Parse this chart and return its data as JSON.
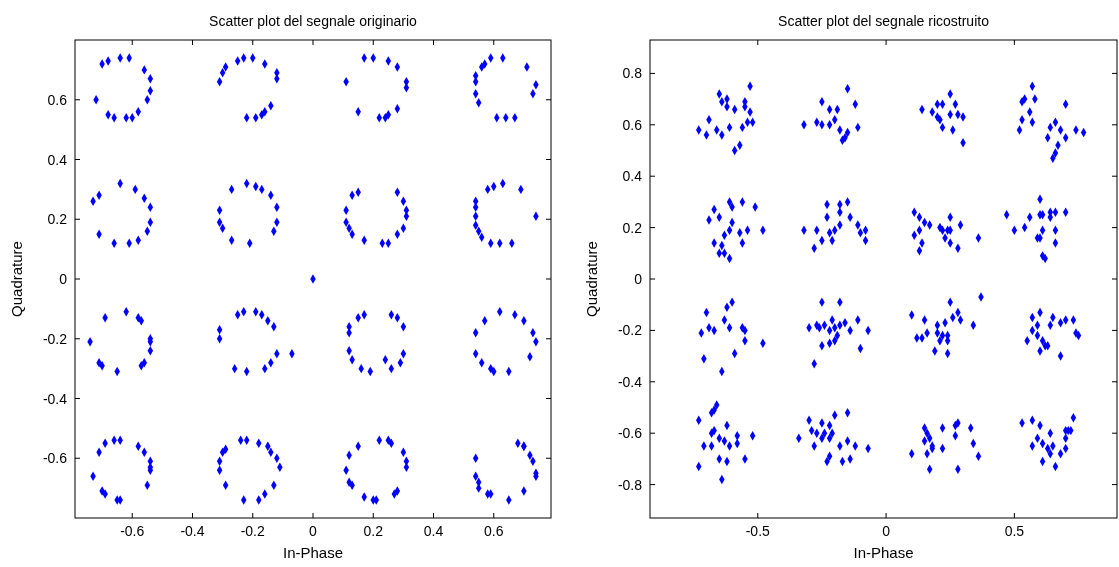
{
  "chart_data": [
    {
      "type": "scatter",
      "title": "Scatter plot del segnale originario",
      "xlabel": "In-Phase",
      "ylabel": "Quadrature",
      "xlim": [
        -0.79,
        0.79
      ],
      "ylim": [
        -0.8,
        0.8
      ],
      "xticks": [
        -0.6,
        -0.4,
        -0.2,
        0,
        0.2,
        0.4,
        0.6
      ],
      "yticks": [
        -0.6,
        -0.4,
        -0.2,
        0,
        0.2,
        0.4,
        0.6
      ],
      "marker": "diamond",
      "series": [
        {
          "color": "#0000ff",
          "x": [
            -0.72,
            -0.7,
            -0.68,
            -0.64,
            -0.61,
            -0.56,
            -0.54,
            -0.54,
            -0.55,
            -0.58,
            -0.6,
            -0.62,
            -0.66,
            -0.68,
            -0.31,
            -0.3,
            -0.29,
            -0.25,
            -0.23,
            -0.2,
            -0.16,
            -0.12,
            -0.12,
            -0.14,
            -0.16,
            -0.17,
            -0.19,
            -0.22,
            0.11,
            0.15,
            0.17,
            0.2,
            0.25,
            0.28,
            0.31,
            0.31,
            0.28,
            0.25,
            0.24,
            0.22,
            0.54,
            0.54,
            0.56,
            0.57,
            0.59,
            0.63,
            0.71,
            0.74,
            0.73,
            0.54,
            0.55,
            0.61,
            0.64,
            0.67,
            -0.73,
            -0.71,
            -0.64,
            -0.59,
            -0.56,
            -0.54,
            -0.54,
            -0.55,
            -0.58,
            -0.61,
            -0.66,
            -0.71,
            -0.31,
            -0.31,
            -0.3,
            -0.27,
            -0.27,
            -0.22,
            -0.19,
            -0.17,
            -0.14,
            -0.12,
            -0.12,
            -0.13,
            -0.21,
            0.11,
            0.11,
            0.12,
            0.13,
            0.17,
            0.13,
            0.15,
            0.28,
            0.3,
            0.31,
            0.31,
            0.3,
            0.28,
            0.25,
            0.23,
            0.54,
            0.54,
            0.54,
            0.54,
            0.55,
            0.56,
            0.59,
            0.62,
            0.66,
            0.58,
            0.6,
            0.63,
            0.69,
            0.74,
            0,
            -0.74,
            -0.69,
            -0.62,
            -0.58,
            -0.57,
            -0.54,
            -0.54,
            -0.54,
            -0.56,
            -0.57,
            -0.65,
            -0.7,
            -0.71,
            -0.31,
            -0.31,
            -0.25,
            -0.23,
            -0.19,
            -0.17,
            -0.15,
            -0.13,
            -0.12,
            -0.14,
            -0.16,
            -0.22,
            -0.26,
            -0.07,
            0.12,
            0.12,
            0.15,
            0.17,
            0.26,
            0.28,
            0.3,
            0.3,
            0.29,
            0.26,
            0.24,
            0.19,
            0.16,
            0.13,
            0.12,
            0.54,
            0.57,
            0.62,
            0.67,
            0.7,
            0.73,
            0.74,
            0.72,
            0.65,
            0.6,
            0.59,
            0.56,
            0.54,
            -0.73,
            -0.71,
            -0.69,
            -0.66,
            -0.64,
            -0.58,
            -0.56,
            -0.54,
            -0.54,
            -0.54,
            -0.55,
            -0.64,
            -0.65,
            -0.69,
            -0.7,
            -0.31,
            -0.31,
            -0.3,
            -0.29,
            -0.29,
            -0.24,
            -0.22,
            -0.18,
            -0.15,
            -0.14,
            -0.12,
            -0.11,
            -0.13,
            -0.16,
            -0.18,
            -0.23,
            0.11,
            0.12,
            0.15,
            0.22,
            0.25,
            0.26,
            0.3,
            0.31,
            0.31,
            0.28,
            0.27,
            0.21,
            0.2,
            0.17,
            0.13,
            0.12,
            0.54,
            0.54,
            0.55,
            0.55,
            0.58,
            0.59,
            0.65,
            0.7,
            0.74,
            0.74,
            0.73,
            0.72,
            0.7,
            0.7,
            0.68
          ],
          "values": [
            0.6,
            0.72,
            0.73,
            0.74,
            0.74,
            0.7,
            0.67,
            0.63,
            0.6,
            0.56,
            0.54,
            0.54,
            0.54,
            0.55,
            0.66,
            0.69,
            0.71,
            0.73,
            0.74,
            0.74,
            0.72,
            0.69,
            0.67,
            0.58,
            0.56,
            0.55,
            0.54,
            0.54,
            0.66,
            0.56,
            0.74,
            0.74,
            0.73,
            0.71,
            0.66,
            0.64,
            0.57,
            0.55,
            0.54,
            0.54,
            0.66,
            0.68,
            0.71,
            0.72,
            0.74,
            0.74,
            0.71,
            0.65,
            0.62,
            0.62,
            0.59,
            0.54,
            0.54,
            0.54,
            0.26,
            0.28,
            0.32,
            0.3,
            0.27,
            0.24,
            0.19,
            0.16,
            0.13,
            0.12,
            0.12,
            0.15,
            0.23,
            0.19,
            0.17,
            0.13,
            0.3,
            0.32,
            0.31,
            0.3,
            0.28,
            0.24,
            0.19,
            0.16,
            0.12,
            0.23,
            0.19,
            0.17,
            0.15,
            0.13,
            0.28,
            0.29,
            0.29,
            0.26,
            0.23,
            0.21,
            0.17,
            0.15,
            0.12,
            0.12,
            0.26,
            0.24,
            0.21,
            0.18,
            0.16,
            0.14,
            0.12,
            0.12,
            0.12,
            0.3,
            0.31,
            0.32,
            0.3,
            0.21,
            0,
            -0.21,
            -0.13,
            -0.11,
            -0.13,
            -0.14,
            -0.2,
            -0.21,
            -0.24,
            -0.28,
            -0.29,
            -0.31,
            -0.29,
            -0.28,
            -0.2,
            -0.17,
            -0.12,
            -0.11,
            -0.11,
            -0.12,
            -0.14,
            -0.16,
            -0.25,
            -0.28,
            -0.3,
            -0.31,
            -0.3,
            -0.25,
            -0.18,
            -0.16,
            -0.13,
            -0.12,
            -0.12,
            -0.13,
            -0.16,
            -0.25,
            -0.28,
            -0.3,
            -0.27,
            -0.31,
            -0.3,
            -0.27,
            -0.24,
            -0.18,
            -0.14,
            -0.11,
            -0.12,
            -0.14,
            -0.18,
            -0.21,
            -0.26,
            -0.31,
            -0.31,
            -0.3,
            -0.28,
            -0.25,
            -0.66,
            -0.58,
            -0.55,
            -0.54,
            -0.54,
            -0.56,
            -0.58,
            -0.61,
            -0.63,
            -0.64,
            -0.69,
            -0.74,
            -0.74,
            -0.72,
            -0.71,
            -0.64,
            -0.61,
            -0.58,
            -0.57,
            -0.69,
            -0.54,
            -0.54,
            -0.55,
            -0.56,
            -0.58,
            -0.6,
            -0.63,
            -0.69,
            -0.72,
            -0.74,
            -0.74,
            -0.64,
            -0.59,
            -0.56,
            -0.54,
            -0.54,
            -0.55,
            -0.58,
            -0.61,
            -0.63,
            -0.71,
            -0.72,
            -0.74,
            -0.74,
            -0.73,
            -0.69,
            -0.68,
            -0.6,
            -0.66,
            -0.68,
            -0.7,
            -0.72,
            -0.72,
            -0.74,
            -0.71,
            -0.66,
            -0.65,
            -0.61,
            -0.59,
            -0.56,
            -0.56,
            -0.55
          ]
        }
      ]
    },
    {
      "type": "scatter",
      "title": "Scatter plot del segnale ricostruito",
      "xlabel": "In-Phase",
      "ylabel": "Quadrature",
      "xlim": [
        -0.92,
        0.9
      ],
      "ylim": [
        -0.93,
        0.93
      ],
      "xticks": [
        -0.5,
        0,
        0.5
      ],
      "yticks": [
        -0.8,
        -0.6,
        -0.4,
        -0.2,
        0,
        0.2,
        0.4,
        0.6,
        0.8
      ],
      "marker": "diamond",
      "series": [
        {
          "color": "#0000ff",
          "x": [
            -0.73,
            -0.7,
            -0.69,
            -0.66,
            -0.64,
            -0.65,
            -0.64,
            -0.62,
            -0.62,
            -0.61,
            -0.59,
            -0.57,
            -0.59,
            -0.56,
            -0.55,
            -0.55,
            -0.53,
            -0.53,
            -0.54,
            -0.52,
            -0.32,
            -0.27,
            -0.25,
            -0.22,
            -0.25,
            -0.22,
            -0.2,
            -0.19,
            -0.18,
            -0.17,
            -0.16,
            -0.15,
            -0.11,
            -0.12,
            -0.15,
            0.14,
            0.18,
            0.2,
            0.2,
            0.22,
            0.22,
            0.25,
            0.25,
            0.26,
            0.27,
            0.28,
            0.3,
            0.3,
            0.21,
            0.52,
            0.53,
            0.53,
            0.54,
            0.56,
            0.57,
            0.57,
            0.58,
            0.63,
            0.64,
            0.66,
            0.68,
            0.7,
            0.67,
            0.66,
            0.65,
            0.7,
            0.74,
            0.77,
            -0.69,
            -0.67,
            -0.65,
            -0.61,
            -0.6,
            -0.56,
            -0.51,
            -0.48,
            -0.6,
            -0.61,
            -0.63,
            -0.57,
            -0.54,
            -0.56,
            -0.67,
            -0.65,
            -0.63,
            -0.61,
            -0.64,
            -0.32,
            -0.27,
            -0.25,
            -0.28,
            -0.23,
            -0.23,
            -0.22,
            -0.21,
            -0.2,
            -0.18,
            -0.18,
            -0.15,
            -0.14,
            -0.11,
            -0.1,
            -0.08,
            -0.08,
            -0.18,
            0.11,
            0.13,
            0.15,
            0.17,
            0.13,
            0.11,
            0.14,
            0.13,
            0.21,
            0.22,
            0.24,
            0.23,
            0.25,
            0.25,
            0.28,
            0.29,
            0.36,
            0.25,
            0.47,
            0.5,
            0.54,
            0.56,
            0.59,
            0.6,
            0.6,
            0.6,
            0.61,
            0.61,
            0.64,
            0.64,
            0.66,
            0.7,
            0.66,
            0.66,
            0.61,
            0.62,
            -0.72,
            -0.7,
            -0.69,
            -0.67,
            -0.71,
            -0.64,
            -0.63,
            -0.62,
            -0.61,
            -0.6,
            -0.59,
            -0.56,
            -0.55,
            -0.55,
            -0.48,
            -0.3,
            -0.27,
            -0.26,
            -0.28,
            -0.25,
            -0.25,
            -0.24,
            -0.22,
            -0.22,
            -0.21,
            -0.2,
            -0.19,
            -0.18,
            -0.18,
            -0.16,
            -0.14,
            -0.11,
            -0.1,
            -0.07,
            -0.2,
            0.1,
            0.12,
            0.14,
            0.15,
            0.16,
            0.19,
            0.2,
            0.2,
            0.21,
            0.22,
            0.24,
            0.23,
            0.24,
            0.24,
            0.25,
            0.26,
            0.28,
            0.29,
            0.34,
            0.37,
            0.55,
            0.57,
            0.57,
            0.59,
            0.59,
            0.6,
            0.6,
            0.61,
            0.62,
            0.63,
            0.64,
            0.65,
            0.68,
            0.68,
            0.7,
            0.73,
            0.74,
            0.75,
            -0.73,
            -0.73,
            -0.71,
            -0.68,
            -0.68,
            -0.67,
            -0.66,
            -0.68,
            -0.67,
            -0.65,
            -0.65,
            -0.64,
            -0.62,
            -0.62,
            -0.63,
            -0.61,
            -0.58,
            -0.58,
            -0.55,
            -0.52,
            -0.34,
            -0.3,
            -0.29,
            -0.28,
            -0.27,
            -0.25,
            -0.25,
            -0.24,
            -0.22,
            -0.22,
            -0.21,
            -0.23,
            -0.22,
            -0.2,
            -0.18,
            -0.17,
            -0.15,
            -0.15,
            -0.14,
            -0.12,
            -0.07,
            0.1,
            0.15,
            0.15,
            0.16,
            0.16,
            0.17,
            0.17,
            0.18,
            0.18,
            0.22,
            0.22,
            0.27,
            0.27,
            0.28,
            0.28,
            0.33,
            0.34,
            0.36,
            0.53,
            0.57,
            0.57,
            0.59,
            0.6,
            0.61,
            0.61,
            0.64,
            0.63,
            0.64,
            0.65,
            0.66,
            0.68,
            0.7,
            0.7,
            0.7,
            0.71,
            0.72,
            0.73
          ],
          "values": [
            0.58,
            0.56,
            0.62,
            0.58,
            0.56,
            0.72,
            0.69,
            0.7,
            0.67,
            0.59,
            0.5,
            0.52,
            0.66,
            0.59,
            0.69,
            0.67,
            0.75,
            0.65,
            0.61,
            0.61,
            0.6,
            0.61,
            0.6,
            0.6,
            0.69,
            0.66,
            0.62,
            0.66,
            0.58,
            0.54,
            0.55,
            0.57,
            0.59,
            0.68,
            0.74,
            0.66,
            0.65,
            0.68,
            0.63,
            0.59,
            0.68,
            0.64,
            0.72,
            0.58,
            0.68,
            0.64,
            0.53,
            0.63,
            0.62,
            0.58,
            0.62,
            0.69,
            0.7,
            0.65,
            0.61,
            0.75,
            0.7,
            0.55,
            0.59,
            0.61,
            0.58,
            0.55,
            0.52,
            0.49,
            0.47,
            0.68,
            0.58,
            0.57,
            0.23,
            0.27,
            0.24,
            0.3,
            0.28,
            0.3,
            0.28,
            0.19,
            0.22,
            0.19,
            0.17,
            0.18,
            0.19,
            0.14,
            0.14,
            0.1,
            0.1,
            0.08,
            0.13,
            0.19,
            0.19,
            0.15,
            0.12,
            0.24,
            0.29,
            0.18,
            0.15,
            0.19,
            0.21,
            0.29,
            0.3,
            0.24,
            0.21,
            0.18,
            0.19,
            0.15,
            0.26,
            0.26,
            0.24,
            0.22,
            0.21,
            0.19,
            0.17,
            0.14,
            0.11,
            0.2,
            0.19,
            0.19,
            0.16,
            0.14,
            0.24,
            0.12,
            0.21,
            0.16,
            0.19,
            0.25,
            0.19,
            0.2,
            0.24,
            0.16,
            0.16,
            0.31,
            0.25,
            0.19,
            0.25,
            0.24,
            0.26,
            0.26,
            0.26,
            0.19,
            0.14,
            0.09,
            0.08,
            -0.21,
            -0.13,
            -0.19,
            -0.2,
            -0.31,
            -0.36,
            -0.16,
            -0.11,
            -0.19,
            -0.09,
            -0.29,
            -0.19,
            -0.24,
            -0.2,
            -0.25,
            -0.19,
            -0.18,
            -0.19,
            -0.33,
            -0.09,
            -0.26,
            -0.18,
            -0.2,
            -0.25,
            -0.16,
            -0.19,
            -0.22,
            -0.09,
            -0.18,
            -0.17,
            -0.2,
            -0.16,
            -0.27,
            -0.2,
            -0.24,
            -0.14,
            -0.23,
            -0.23,
            -0.16,
            -0.21,
            -0.28,
            -0.18,
            -0.21,
            -0.24,
            -0.22,
            -0.29,
            -0.17,
            -0.24,
            -0.22,
            -0.09,
            -0.15,
            -0.13,
            -0.16,
            -0.18,
            -0.07,
            -0.24,
            -0.2,
            -0.15,
            -0.18,
            -0.22,
            -0.28,
            -0.13,
            -0.24,
            -0.26,
            -0.26,
            -0.18,
            -0.15,
            -0.17,
            -0.3,
            -0.16,
            -0.16,
            -0.21,
            -0.22,
            -0.55,
            -0.73,
            -0.65,
            -0.65,
            -0.52,
            -0.51,
            -0.49,
            -0.6,
            -0.59,
            -0.62,
            -0.7,
            -0.78,
            -0.57,
            -0.71,
            -0.63,
            -0.65,
            -0.61,
            -0.64,
            -0.7,
            -0.61,
            -0.62,
            -0.55,
            -0.59,
            -0.65,
            -0.6,
            -0.56,
            -0.62,
            -0.6,
            -0.57,
            -0.62,
            -0.6,
            -0.71,
            -0.69,
            -0.53,
            -0.65,
            -0.71,
            -0.52,
            -0.63,
            -0.7,
            -0.65,
            -0.66,
            -0.68,
            -0.63,
            -0.58,
            -0.6,
            -0.68,
            -0.74,
            -0.62,
            -0.65,
            -0.66,
            -0.66,
            -0.58,
            -0.61,
            -0.57,
            -0.56,
            -0.74,
            -0.58,
            -0.64,
            -0.69,
            -0.56,
            -0.65,
            -0.55,
            -0.62,
            -0.57,
            -0.71,
            -0.64,
            -0.6,
            -0.66,
            -0.68,
            -0.65,
            -0.73,
            -0.68,
            -0.59,
            -0.66,
            -0.62,
            -0.59,
            -0.59,
            -0.54
          ]
        }
      ]
    }
  ]
}
